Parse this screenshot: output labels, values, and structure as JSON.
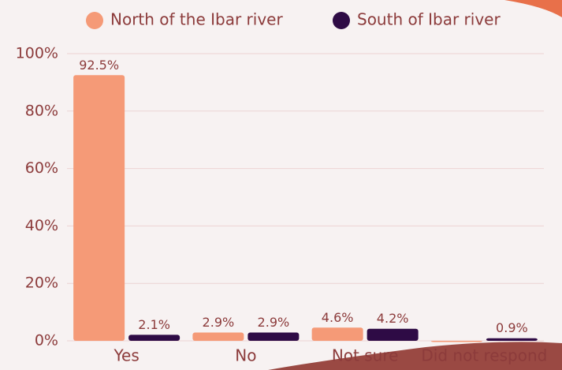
{
  "chart_data": {
    "type": "bar",
    "categories": [
      "Yes",
      "No",
      "Not sure",
      "Did not respond"
    ],
    "series": [
      {
        "name": "North of the Ibar river",
        "color": "#f59a77",
        "values": [
          92.5,
          2.9,
          4.6,
          0
        ],
        "value_labels": [
          "92.5%",
          "2.9%",
          "4.6%",
          null
        ]
      },
      {
        "name": "South of Ibar river",
        "color": "#2e0b45",
        "values": [
          2.1,
          2.9,
          4.2,
          0.9
        ],
        "value_labels": [
          "2.1%",
          "2.9%",
          "4.2%",
          "0.9%"
        ]
      }
    ],
    "ylim": [
      0,
      100
    ],
    "yticks": [
      {
        "value": 0,
        "label": "0%"
      },
      {
        "value": 20,
        "label": "20%"
      },
      {
        "value": 40,
        "label": "40%"
      },
      {
        "value": 60,
        "label": "60%"
      },
      {
        "value": 80,
        "label": "80%"
      },
      {
        "value": 100,
        "label": "100%"
      }
    ],
    "grid": true,
    "legend": "top"
  }
}
